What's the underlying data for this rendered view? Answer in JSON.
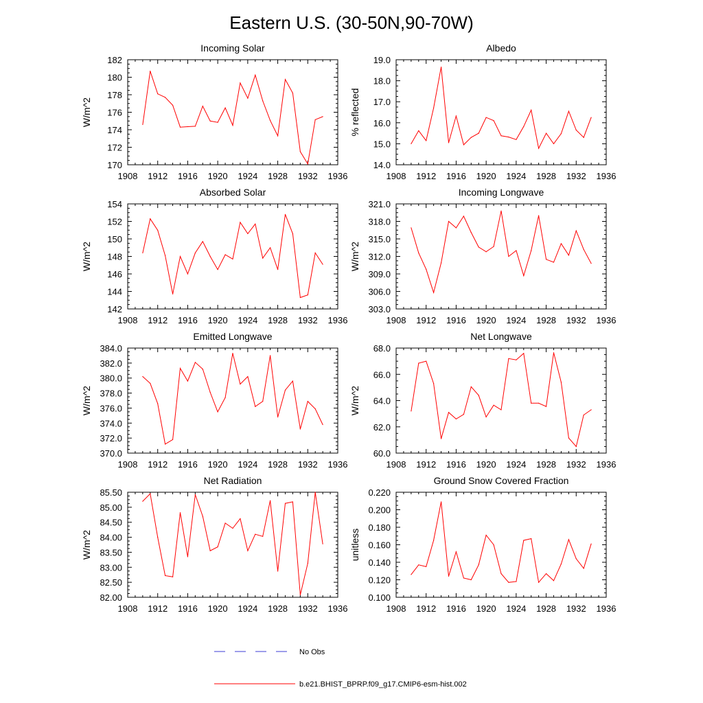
{
  "figure_title": "Eastern U.S. (30-50N,90-70W)",
  "legend": {
    "entries": [
      {
        "label": "No Obs",
        "style": "dashed",
        "color": "#3b3bd6"
      },
      {
        "label": "b.e21.BHIST_BPRP.f09_g17.CMIP6-esm-hist.002",
        "style": "solid",
        "color": "#ff0000"
      }
    ]
  },
  "chart_data": [
    {
      "type": "line",
      "title": "Incoming Solar",
      "ylabel": "W/m^2",
      "xlim": [
        1908,
        1936
      ],
      "xticks": [
        1908,
        1912,
        1916,
        1920,
        1924,
        1928,
        1932,
        1936
      ],
      "ylim": [
        170,
        182
      ],
      "yticks": [
        170,
        172,
        174,
        176,
        178,
        180,
        182
      ],
      "ydec": 0,
      "x": [
        1910,
        1911,
        1912,
        1913,
        1914,
        1915,
        1916,
        1917,
        1918,
        1919,
        1920,
        1921,
        1922,
        1923,
        1924,
        1925,
        1926,
        1927,
        1928,
        1929,
        1930,
        1931,
        1932,
        1933,
        1934
      ],
      "series": [
        {
          "name": "b.e21.BHIST_BPRP.f09_g17.CMIP6-esm-hist.002",
          "color": "#ff0000",
          "values": [
            174.6,
            180.7,
            178.1,
            177.7,
            176.8,
            174.3,
            174.35,
            174.4,
            176.7,
            175.0,
            174.85,
            176.5,
            174.5,
            179.35,
            177.6,
            180.25,
            177.3,
            175.05,
            173.3,
            179.75,
            178.2,
            171.5,
            170.1,
            175.15,
            175.5
          ]
        }
      ]
    },
    {
      "type": "line",
      "title": "Albedo",
      "ylabel": "% reflected",
      "xlim": [
        1908,
        1936
      ],
      "xticks": [
        1908,
        1912,
        1916,
        1920,
        1924,
        1928,
        1932,
        1936
      ],
      "ylim": [
        14,
        19
      ],
      "yticks": [
        14,
        15,
        16,
        17,
        18,
        19
      ],
      "ydec": 1,
      "x": [
        1910,
        1911,
        1912,
        1913,
        1914,
        1915,
        1916,
        1917,
        1918,
        1919,
        1920,
        1921,
        1922,
        1923,
        1924,
        1925,
        1926,
        1927,
        1928,
        1929,
        1930,
        1931,
        1932,
        1933,
        1934
      ],
      "series": [
        {
          "name": "b.e21.BHIST_BPRP.f09_g17.CMIP6-esm-hist.002",
          "color": "#ff0000",
          "values": [
            15.0,
            15.62,
            15.15,
            16.7,
            18.65,
            15.05,
            16.32,
            14.95,
            15.3,
            15.5,
            16.25,
            16.1,
            15.38,
            15.32,
            15.2,
            15.82,
            16.6,
            14.78,
            15.5,
            15.0,
            15.48,
            16.55,
            15.65,
            15.3,
            16.25
          ]
        }
      ]
    },
    {
      "type": "line",
      "title": "Absorbed Solar",
      "ylabel": "W/m^2",
      "xlim": [
        1908,
        1936
      ],
      "xticks": [
        1908,
        1912,
        1916,
        1920,
        1924,
        1928,
        1932,
        1936
      ],
      "ylim": [
        142,
        154
      ],
      "yticks": [
        142,
        144,
        146,
        148,
        150,
        152,
        154
      ],
      "ydec": 0,
      "x": [
        1910,
        1911,
        1912,
        1913,
        1914,
        1915,
        1916,
        1917,
        1918,
        1919,
        1920,
        1921,
        1922,
        1923,
        1924,
        1925,
        1926,
        1927,
        1928,
        1929,
        1930,
        1931,
        1932,
        1933,
        1934
      ],
      "series": [
        {
          "name": "b.e21.BHIST_BPRP.f09_g17.CMIP6-esm-hist.002",
          "color": "#ff0000",
          "values": [
            148.4,
            152.3,
            151.0,
            148.1,
            143.7,
            148.0,
            146.0,
            148.4,
            149.7,
            148.0,
            146.5,
            148.2,
            147.7,
            151.9,
            150.6,
            151.7,
            147.8,
            149.0,
            146.5,
            152.8,
            150.6,
            143.3,
            143.6,
            148.4,
            147.1
          ]
        }
      ]
    },
    {
      "type": "line",
      "title": "Incoming Longwave",
      "ylabel": "W/m^2",
      "xlim": [
        1908,
        1936
      ],
      "xticks": [
        1908,
        1912,
        1916,
        1920,
        1924,
        1928,
        1932,
        1936
      ],
      "ylim": [
        303,
        321
      ],
      "yticks": [
        303,
        306,
        309,
        312,
        315,
        318,
        321
      ],
      "ydec": 1,
      "x": [
        1910,
        1911,
        1912,
        1913,
        1914,
        1915,
        1916,
        1917,
        1918,
        1919,
        1920,
        1921,
        1922,
        1923,
        1924,
        1925,
        1926,
        1927,
        1928,
        1929,
        1930,
        1931,
        1932,
        1933,
        1934
      ],
      "series": [
        {
          "name": "b.e21.BHIST_BPRP.f09_g17.CMIP6-esm-hist.002",
          "color": "#ff0000",
          "values": [
            316.9,
            312.6,
            309.8,
            305.8,
            310.9,
            318.0,
            316.9,
            318.9,
            316.1,
            313.6,
            312.8,
            313.7,
            319.8,
            312.0,
            313.0,
            308.7,
            313.0,
            319.0,
            311.5,
            311.0,
            314.2,
            312.2,
            316.4,
            313.2,
            310.8
          ]
        }
      ]
    },
    {
      "type": "line",
      "title": "Emitted Longwave",
      "ylabel": "W/m^2",
      "xlim": [
        1908,
        1936
      ],
      "xticks": [
        1908,
        1912,
        1916,
        1920,
        1924,
        1928,
        1932,
        1936
      ],
      "ylim": [
        370,
        384
      ],
      "yticks": [
        370,
        372,
        374,
        376,
        378,
        380,
        382,
        384
      ],
      "ydec": 1,
      "x": [
        1910,
        1911,
        1912,
        1913,
        1914,
        1915,
        1916,
        1917,
        1918,
        1919,
        1920,
        1921,
        1922,
        1923,
        1924,
        1925,
        1926,
        1927,
        1928,
        1929,
        1930,
        1931,
        1932,
        1933,
        1934
      ],
      "series": [
        {
          "name": "b.e21.BHIST_BPRP.f09_g17.CMIP6-esm-hist.002",
          "color": "#ff0000",
          "values": [
            380.2,
            379.3,
            376.6,
            371.2,
            371.8,
            381.3,
            379.6,
            382.1,
            381.2,
            378.1,
            375.5,
            377.4,
            383.3,
            379.2,
            380.2,
            376.2,
            376.9,
            383.0,
            374.8,
            378.4,
            379.6,
            373.2,
            376.9,
            375.9,
            373.8
          ]
        }
      ]
    },
    {
      "type": "line",
      "title": "Net Longwave",
      "ylabel": "W/m^2",
      "xlim": [
        1908,
        1936
      ],
      "xticks": [
        1908,
        1912,
        1916,
        1920,
        1924,
        1928,
        1932,
        1936
      ],
      "ylim": [
        60,
        68
      ],
      "yticks": [
        60,
        62,
        64,
        66,
        68
      ],
      "ydec": 1,
      "x": [
        1910,
        1911,
        1912,
        1913,
        1914,
        1915,
        1916,
        1917,
        1918,
        1919,
        1920,
        1921,
        1922,
        1923,
        1924,
        1925,
        1926,
        1927,
        1928,
        1929,
        1930,
        1931,
        1932,
        1933,
        1934
      ],
      "series": [
        {
          "name": "b.e21.BHIST_BPRP.f09_g17.CMIP6-esm-hist.002",
          "color": "#ff0000",
          "values": [
            63.2,
            66.85,
            67.0,
            65.3,
            61.1,
            63.1,
            62.6,
            62.95,
            65.05,
            64.4,
            62.75,
            63.65,
            63.3,
            67.2,
            67.1,
            67.6,
            63.8,
            63.8,
            63.55,
            67.65,
            65.4,
            61.15,
            60.5,
            62.9,
            63.3
          ]
        }
      ]
    },
    {
      "type": "line",
      "title": "Net Radiation",
      "ylabel": "W/m^2",
      "xlim": [
        1908,
        1936
      ],
      "xticks": [
        1908,
        1912,
        1916,
        1920,
        1924,
        1928,
        1932,
        1936
      ],
      "ylim": [
        82,
        85.5
      ],
      "yticks": [
        82,
        82.5,
        83,
        83.5,
        84,
        84.5,
        85,
        85.5
      ],
      "ydec": 2,
      "x": [
        1910,
        1911,
        1912,
        1913,
        1914,
        1915,
        1916,
        1917,
        1918,
        1919,
        1920,
        1921,
        1922,
        1923,
        1924,
        1925,
        1926,
        1927,
        1928,
        1929,
        1930,
        1931,
        1932,
        1933,
        1934
      ],
      "series": [
        {
          "name": "b.e21.BHIST_BPRP.f09_g17.CMIP6-esm-hist.002",
          "color": "#ff0000",
          "values": [
            85.2,
            85.45,
            84.0,
            82.72,
            82.68,
            84.82,
            83.35,
            85.42,
            84.7,
            83.55,
            83.68,
            84.47,
            84.3,
            84.62,
            83.55,
            84.1,
            84.03,
            85.22,
            82.87,
            85.13,
            85.18,
            82.08,
            83.13,
            85.5,
            83.78
          ]
        }
      ]
    },
    {
      "type": "line",
      "title": "Ground Snow Covered Fraction",
      "ylabel": "unitless",
      "xlim": [
        1908,
        1936
      ],
      "xticks": [
        1908,
        1912,
        1916,
        1920,
        1924,
        1928,
        1932,
        1936
      ],
      "ylim": [
        0.1,
        0.22
      ],
      "yticks": [
        0.1,
        0.12,
        0.14,
        0.16,
        0.18,
        0.2,
        0.22
      ],
      "ydec": 3,
      "x": [
        1910,
        1911,
        1912,
        1913,
        1914,
        1915,
        1916,
        1917,
        1918,
        1919,
        1920,
        1921,
        1922,
        1923,
        1924,
        1925,
        1926,
        1927,
        1928,
        1929,
        1930,
        1931,
        1932,
        1933,
        1934
      ],
      "series": [
        {
          "name": "b.e21.BHIST_BPRP.f09_g17.CMIP6-esm-hist.002",
          "color": "#ff0000",
          "values": [
            0.126,
            0.137,
            0.135,
            0.165,
            0.209,
            0.124,
            0.152,
            0.122,
            0.12,
            0.137,
            0.171,
            0.16,
            0.127,
            0.117,
            0.118,
            0.165,
            0.167,
            0.117,
            0.127,
            0.119,
            0.138,
            0.166,
            0.144,
            0.133,
            0.161
          ]
        }
      ]
    }
  ]
}
